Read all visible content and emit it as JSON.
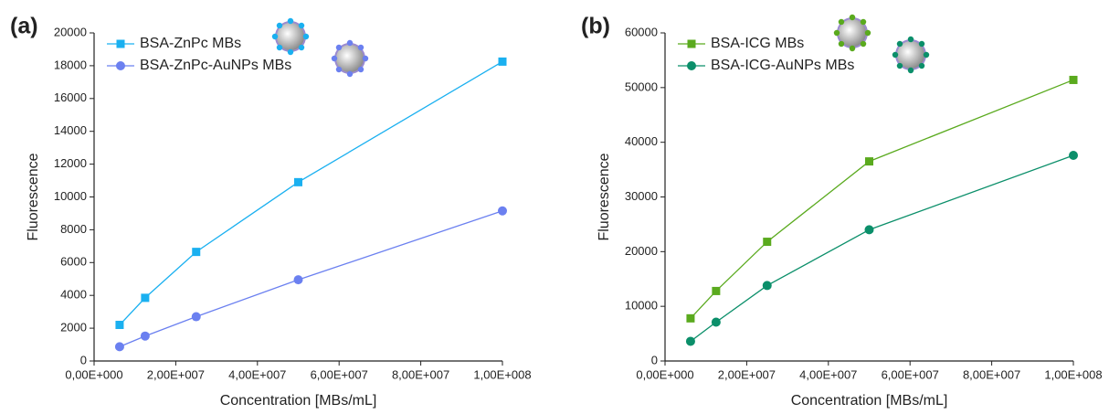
{
  "chart_data": [
    {
      "type": "line",
      "panel": "(a)",
      "xlabel": "Concentration [MBs/mL]",
      "ylabel": "Fluorescence",
      "x": [
        6250000,
        12500000,
        25000000,
        50000000,
        100000000
      ],
      "xlim": [
        0,
        100000000
      ],
      "xticks": [
        {
          "value": 0,
          "label": "0,00E+000"
        },
        {
          "value": 20000000,
          "label": "2,00E+007"
        },
        {
          "value": 40000000,
          "label": "4,00E+007"
        },
        {
          "value": 60000000,
          "label": "6,00E+007"
        },
        {
          "value": 80000000,
          "label": "8,00E+007"
        },
        {
          "value": 100000000,
          "label": "1,00E+008"
        }
      ],
      "ylim": [
        0,
        20000
      ],
      "yticks": [
        0,
        2000,
        4000,
        6000,
        8000,
        10000,
        12000,
        14000,
        16000,
        18000,
        20000
      ],
      "series": [
        {
          "name": "BSA-ZnPc MBs",
          "color": "#1ab0f0",
          "marker": "square",
          "values": [
            2200,
            3850,
            6650,
            10900,
            18250
          ]
        },
        {
          "name": "BSA-ZnPc-AuNPs MBs",
          "color": "#6b80f0",
          "marker": "circle",
          "values": [
            870,
            1520,
            2700,
            4950,
            9150
          ]
        }
      ]
    },
    {
      "type": "line",
      "panel": "(b)",
      "xlabel": "Concentration [MBs/mL]",
      "ylabel": "Fluorescence",
      "x": [
        6250000,
        12500000,
        25000000,
        50000000,
        100000000
      ],
      "xlim": [
        0,
        100000000
      ],
      "xticks": [
        {
          "value": 0,
          "label": "0,00E+000"
        },
        {
          "value": 20000000,
          "label": "2,00E+007"
        },
        {
          "value": 40000000,
          "label": "4,00E+007"
        },
        {
          "value": 60000000,
          "label": "6,00E+007"
        },
        {
          "value": 80000000,
          "label": "8,00E+007"
        },
        {
          "value": 100000000,
          "label": "1,00E+008"
        }
      ],
      "ylim": [
        0,
        60000
      ],
      "yticks": [
        0,
        10000,
        20000,
        30000,
        40000,
        50000,
        60000
      ],
      "series": [
        {
          "name": "BSA-ICG MBs",
          "color": "#5aaa1e",
          "marker": "square",
          "values": [
            7800,
            12800,
            21800,
            36500,
            51400
          ]
        },
        {
          "name": "BSA-ICG-AuNPs MBs",
          "color": "#0b8f6a",
          "marker": "circle",
          "values": [
            3600,
            7100,
            13800,
            24000,
            37600
          ]
        }
      ]
    }
  ]
}
